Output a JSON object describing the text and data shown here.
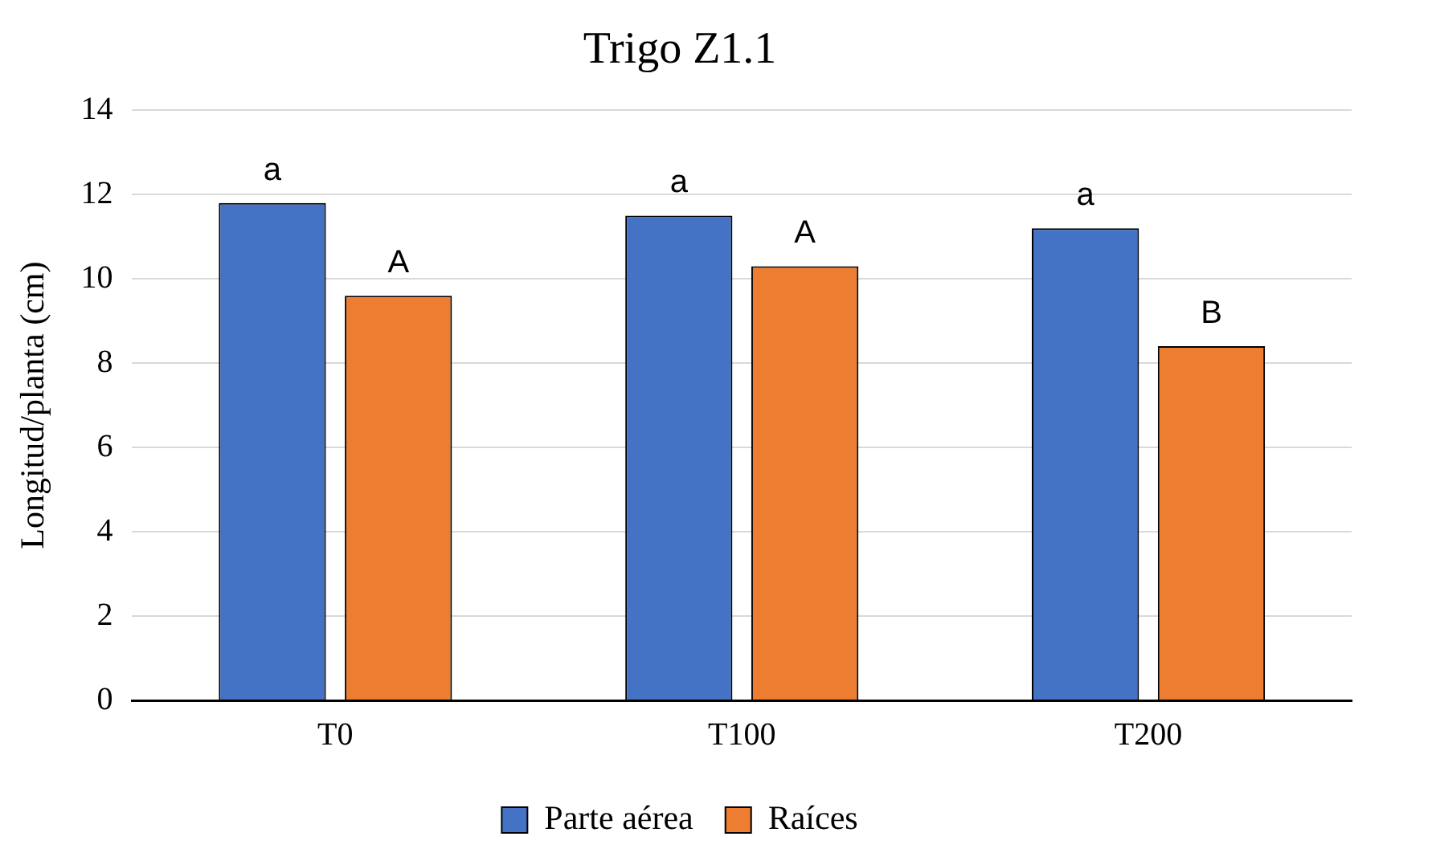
{
  "chart_data": {
    "type": "bar",
    "title": "Trigo Z1.1",
    "ylabel": "Longitud/planta (cm)",
    "categories": [
      "T0",
      "T100",
      "T200"
    ],
    "series": [
      {
        "name": "Parte aérea",
        "color": "#4472c4",
        "values": [
          11.8,
          11.5,
          11.2
        ]
      },
      {
        "name": "Raíces",
        "color": "#ed7d31",
        "values": [
          9.6,
          10.3,
          8.4
        ]
      }
    ],
    "ylim": [
      0,
      14
    ],
    "yticks": [
      0,
      2,
      4,
      6,
      8,
      10,
      12,
      14
    ],
    "grid": "y",
    "legend": "bottom",
    "annotations": [
      "a",
      "A",
      "a",
      "A",
      "a",
      "B"
    ]
  }
}
